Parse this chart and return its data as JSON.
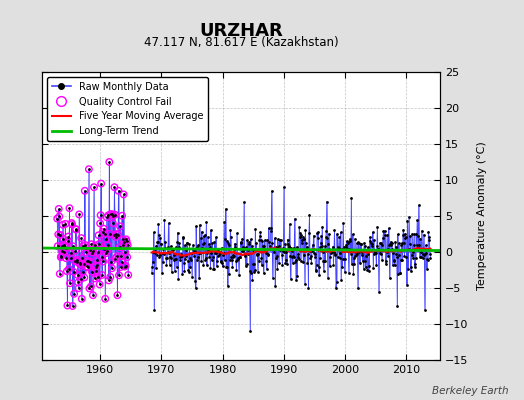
{
  "title": "URZHAR",
  "subtitle": "47.117 N, 81.617 E (Kazakhstan)",
  "ylabel": "Temperature Anomaly (°C)",
  "credit": "Berkeley Earth",
  "ylim": [
    -15,
    25
  ],
  "yticks": [
    -15,
    -10,
    -5,
    0,
    5,
    10,
    15,
    20,
    25
  ],
  "xlim": [
    1950.5,
    2015.5
  ],
  "xticks": [
    1960,
    1970,
    1980,
    1990,
    2000,
    2010
  ],
  "bg_color": "#e0e0e0",
  "plot_bg_color": "#ffffff",
  "raw_color": "#4444ff",
  "qc_color": "#ff00ff",
  "moving_avg_color": "#ff0000",
  "trend_color": "#00bb00",
  "gap_start": 1964.6,
  "gap_end": 1968.4,
  "trend_x": [
    1950,
    2016
  ],
  "trend_y": [
    0.55,
    0.2
  ]
}
